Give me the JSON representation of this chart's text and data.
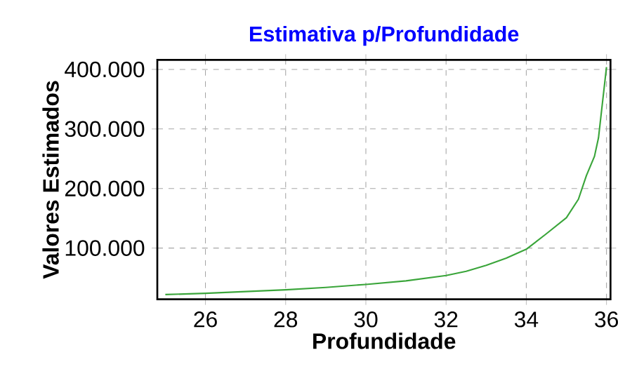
{
  "chart_data": {
    "type": "line",
    "title": "Estimativa p/Profundidade",
    "xlabel": "Profundidade",
    "ylabel": "Valores Estimados",
    "x": [
      25,
      26,
      27,
      28,
      29,
      30,
      31,
      32,
      32.5,
      33,
      33.5,
      34,
      34.5,
      35,
      35.3,
      35.5,
      35.7,
      35.8,
      36
    ],
    "series": [
      {
        "color": "#3aa53a",
        "values": [
          22000,
          24000,
          27000,
          30000,
          34000,
          39000,
          45000,
          54000,
          61000,
          71000,
          83000,
          98000,
          124000,
          151000,
          182000,
          222000,
          254000,
          285000,
          404000
        ]
      }
    ],
    "xlim": [
      24.8,
      36.1
    ],
    "ylim": [
      14000,
      416000
    ],
    "xticks": [
      26,
      28,
      30,
      32,
      34,
      36
    ],
    "yticks": [
      {
        "value": 100000,
        "label": "100.000"
      },
      {
        "value": 200000,
        "label": "200.000"
      },
      {
        "value": 300000,
        "label": "300.000"
      },
      {
        "value": 400000,
        "label": "400.000"
      }
    ],
    "grid": true,
    "marker": "none",
    "line_style": "solid"
  }
}
